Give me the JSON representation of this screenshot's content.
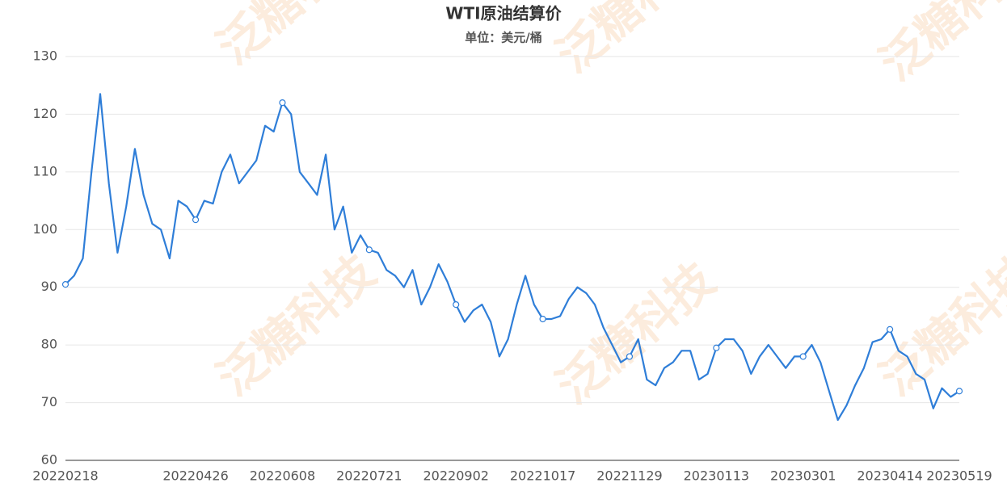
{
  "chart_data": {
    "type": "line",
    "title": "WTI原油结算价",
    "subtitle": "单位：美元/桶",
    "watermark": "泛糖科技",
    "categories": [
      "20220218",
      null,
      null,
      null,
      null,
      null,
      null,
      null,
      null,
      null,
      null,
      null,
      null,
      null,
      null,
      "20220426",
      null,
      null,
      null,
      null,
      null,
      null,
      null,
      null,
      null,
      "20220608",
      null,
      null,
      null,
      null,
      null,
      null,
      null,
      null,
      null,
      "20220721",
      null,
      null,
      null,
      null,
      null,
      null,
      null,
      null,
      null,
      "20220902",
      null,
      null,
      null,
      null,
      null,
      null,
      null,
      null,
      null,
      "20221017",
      null,
      null,
      null,
      null,
      null,
      null,
      null,
      null,
      null,
      "20221129",
      null,
      null,
      null,
      null,
      null,
      null,
      null,
      null,
      null,
      "20230113",
      null,
      null,
      null,
      null,
      null,
      null,
      null,
      null,
      null,
      "20230301",
      null,
      null,
      null,
      null,
      null,
      null,
      null,
      null,
      null,
      "20230414",
      null,
      null,
      null,
      null,
      null,
      null,
      null,
      "20230519"
    ],
    "series": [
      {
        "name": "WTI原油结算价",
        "color": "#2f7ed8",
        "values": [
          90.5,
          92,
          95,
          110,
          123.5,
          108,
          96,
          104,
          114,
          106,
          101,
          100,
          95,
          105,
          104,
          101.7,
          105,
          104.5,
          110,
          113,
          108,
          110,
          112,
          118,
          117,
          122,
          120,
          110,
          108,
          106,
          113,
          100,
          104,
          96,
          99,
          96.5,
          96,
          93,
          92,
          90,
          93,
          87,
          90,
          94,
          91,
          87,
          84,
          86,
          87,
          84,
          78,
          81,
          87,
          92,
          87,
          84.5,
          84.5,
          85,
          88,
          90,
          89,
          87,
          83,
          80,
          77,
          78,
          81,
          74,
          73,
          76,
          77,
          79,
          79,
          74,
          75,
          79.5,
          81,
          81,
          79,
          75,
          78,
          80,
          78,
          76,
          78,
          78,
          80,
          77,
          72,
          67,
          69.5,
          73,
          76,
          80.5,
          81,
          82.7,
          79,
          78,
          75,
          74,
          69,
          72.5,
          71,
          72
        ]
      }
    ],
    "ylim": [
      60,
      130
    ],
    "yticks": [
      60,
      70,
      80,
      90,
      100,
      110,
      120,
      130
    ],
    "grid": true
  }
}
